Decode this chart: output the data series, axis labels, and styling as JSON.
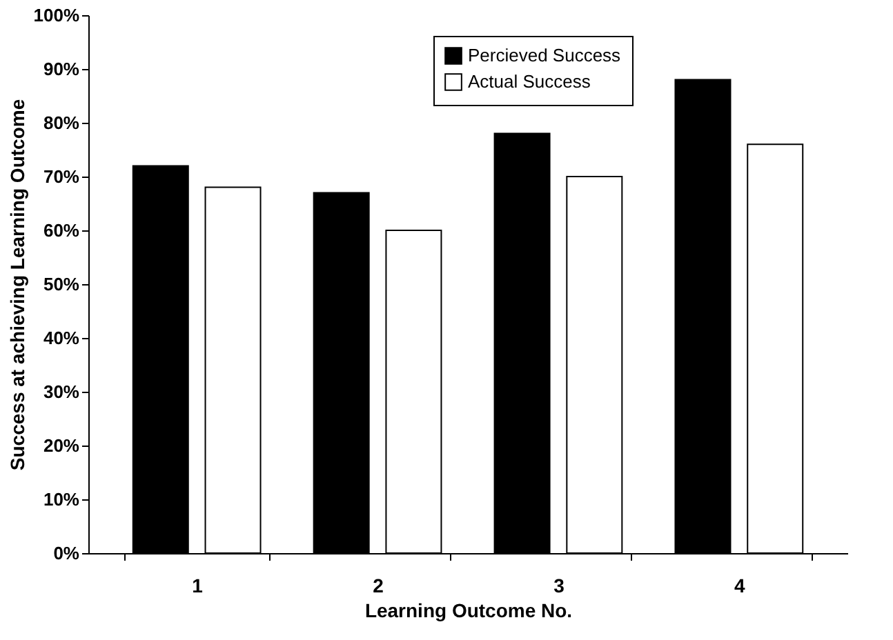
{
  "chart_data": {
    "type": "bar",
    "xlabel": "Learning Outcome No.",
    "ylabel": "Success at achieving Learning Outcome",
    "categories": [
      "1",
      "2",
      "3",
      "4"
    ],
    "series": [
      {
        "name": "Percieved Success",
        "color": "#000000",
        "values": [
          72,
          67,
          78,
          88
        ]
      },
      {
        "name": "Actual Success",
        "color": "#ffffff",
        "values": [
          68,
          60,
          70,
          76
        ]
      }
    ],
    "ylim": [
      0,
      100
    ],
    "yticks": [
      {
        "value": 0,
        "label": "0%"
      },
      {
        "value": 10,
        "label": "10%"
      },
      {
        "value": 20,
        "label": "20%"
      },
      {
        "value": 30,
        "label": "30%"
      },
      {
        "value": 40,
        "label": "40%"
      },
      {
        "value": 50,
        "label": "50%"
      },
      {
        "value": 60,
        "label": "60%"
      },
      {
        "value": 70,
        "label": "70%"
      },
      {
        "value": 80,
        "label": "80%"
      },
      {
        "value": 90,
        "label": "90%"
      },
      {
        "value": 100,
        "label": "100%"
      }
    ],
    "grid": false,
    "legend": "top right"
  }
}
